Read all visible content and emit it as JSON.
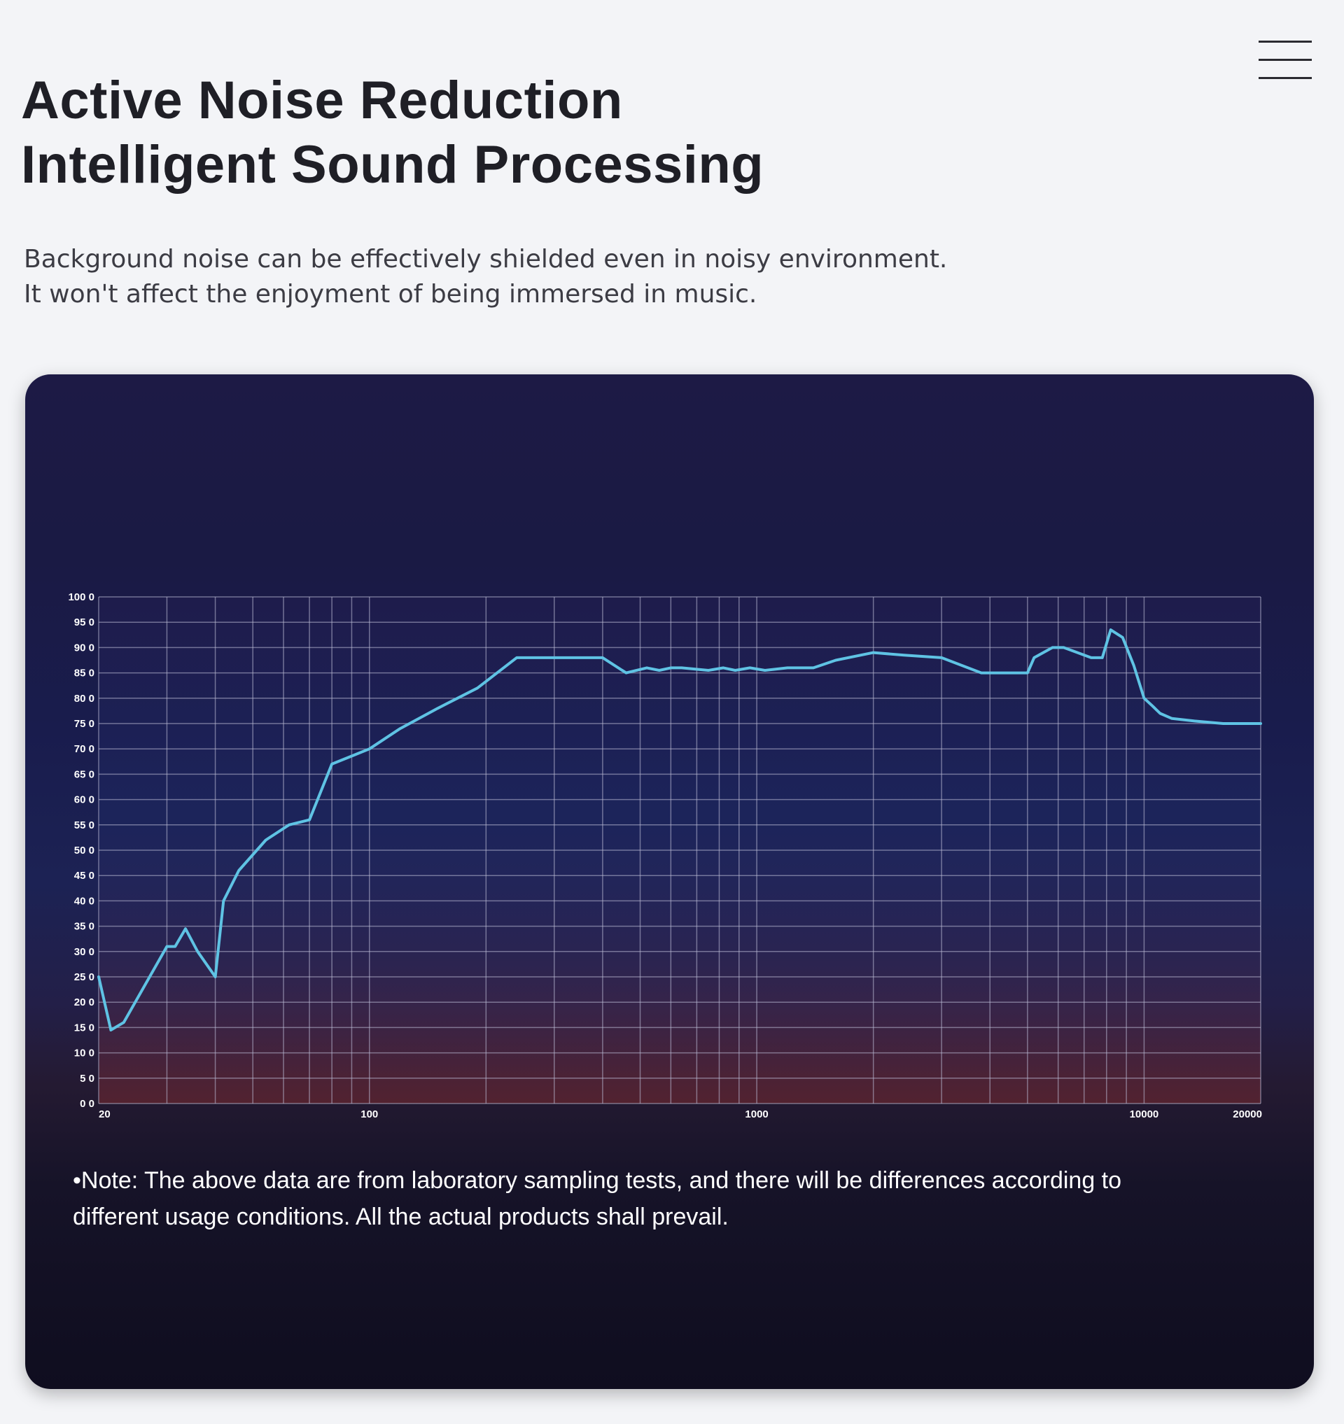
{
  "header": {
    "menu_icon": "hamburger-menu-icon",
    "title_lines": [
      "Active Noise Reduction",
      "Intelligent Sound Processing"
    ],
    "subtitle_lines": [
      "Background noise can be effectively shielded even in noisy environment.",
      "It won't affect the enjoyment of being immersed in music."
    ]
  },
  "card": {
    "note_lines": [
      "•Note: The above data are from laboratory sampling tests, and there will be differences according to",
      "different usage conditions. All the actual products shall prevail."
    ]
  },
  "chart_data": {
    "type": "line",
    "title": "",
    "xlabel": "",
    "ylabel": "",
    "x_scale": "log",
    "xlim": [
      20,
      20000
    ],
    "ylim": [
      0,
      100
    ],
    "grid": true,
    "legend": "none",
    "line_color": "#5fc3e4",
    "x_tick_labels": [
      {
        "value": 20,
        "label": "20"
      },
      {
        "value": 100,
        "label": "100"
      },
      {
        "value": 1000,
        "label": "1000"
      },
      {
        "value": 10000,
        "label": "10000"
      },
      {
        "value": 20000,
        "label": "20000"
      }
    ],
    "y_tick_labels": [
      {
        "value": 100,
        "label": "100 0"
      },
      {
        "value": 95,
        "label": "95 0"
      },
      {
        "value": 90,
        "label": "90 0"
      },
      {
        "value": 85,
        "label": "85 0"
      },
      {
        "value": 80,
        "label": "80 0"
      },
      {
        "value": 75,
        "label": "75 0"
      },
      {
        "value": 70,
        "label": "70 0"
      },
      {
        "value": 65,
        "label": "65 0"
      },
      {
        "value": 60,
        "label": "60 0"
      },
      {
        "value": 55,
        "label": "55 0"
      },
      {
        "value": 50,
        "label": "50 0"
      },
      {
        "value": 45,
        "label": "45 0"
      },
      {
        "value": 40,
        "label": "40 0"
      },
      {
        "value": 35,
        "label": "35 0"
      },
      {
        "value": 30,
        "label": "30 0"
      },
      {
        "value": 25,
        "label": "25 0"
      },
      {
        "value": 20,
        "label": "20 0"
      },
      {
        "value": 15,
        "label": "15 0"
      },
      {
        "value": 10,
        "label": "10 0"
      },
      {
        "value": 5,
        "label": "5 0"
      },
      {
        "value": 0,
        "label": "0 0"
      }
    ],
    "series": [
      {
        "x": [
          20,
          21.5,
          23.2,
          30,
          31.5,
          33.5,
          36,
          40,
          42,
          46,
          54,
          62,
          70,
          80,
          100,
          120,
          150,
          190,
          240,
          290,
          400,
          460,
          520,
          560,
          600,
          640,
          750,
          820,
          880,
          960,
          1050,
          1200,
          1400,
          1600,
          2000,
          2400,
          3000,
          3800,
          5000,
          5200,
          5800,
          6200,
          7300,
          7800,
          8200,
          8800,
          9400,
          10000,
          10500,
          11000,
          11800,
          13500,
          16000,
          20000
        ],
        "y": [
          25,
          14.5,
          16,
          31,
          31,
          34.5,
          30,
          25,
          40,
          46,
          52,
          55,
          56,
          67,
          70,
          74,
          78,
          82,
          88,
          88,
          88,
          85,
          86,
          85.5,
          86,
          86,
          85.5,
          86,
          85.5,
          86,
          85.5,
          86,
          86,
          87.5,
          89,
          88.5,
          88,
          85,
          85,
          88,
          90,
          90,
          88,
          88,
          93.5,
          92,
          86.5,
          80,
          78.5,
          77,
          76,
          75.5,
          75,
          75
        ]
      }
    ]
  }
}
